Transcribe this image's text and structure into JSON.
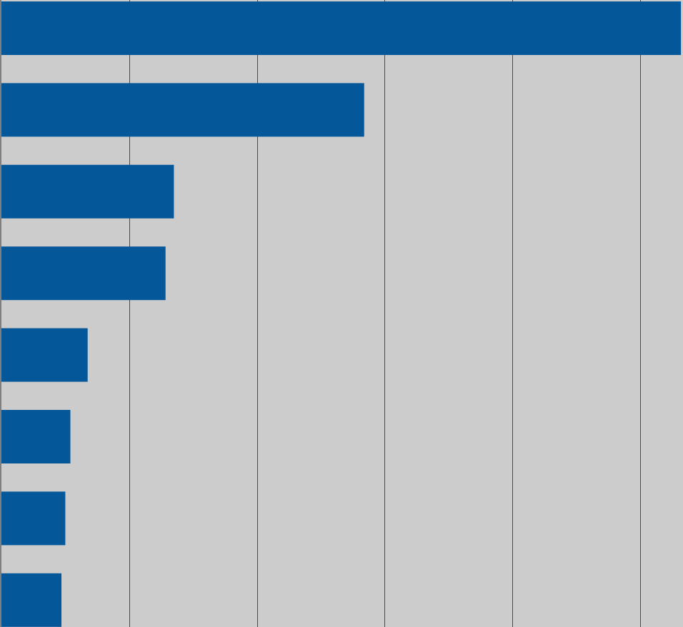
{
  "chart_data": {
    "type": "bar",
    "orientation": "horizontal",
    "categories": [
      "",
      "",
      "",
      "",
      "",
      "",
      "",
      ""
    ],
    "values": [
      10.64,
      5.68,
      2.7,
      2.57,
      1.35,
      1.08,
      1.0,
      0.94
    ],
    "xlim": [
      0,
      10.65
    ],
    "x_gridlines": [
      0,
      2,
      4,
      6,
      8,
      10
    ],
    "grid": true,
    "title": "",
    "xlabel": "",
    "ylabel": "",
    "colors": {
      "background": "#cccccc",
      "bar": "#045799",
      "gridline": "#4a4a4a",
      "axis": "#7f7f7f"
    }
  }
}
